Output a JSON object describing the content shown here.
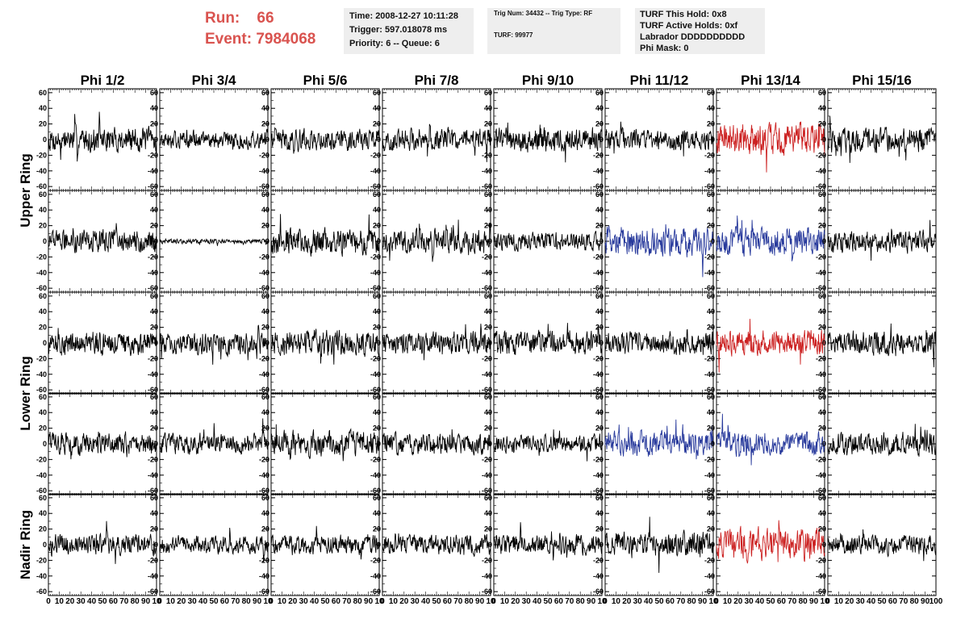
{
  "header": {
    "run_label": "Run:",
    "run_value": "66",
    "event_label": "Event:",
    "event_value": "7984068",
    "info_box_1": [
      "Time: 2008-12-27 10:11:28",
      "Trigger: 597.018078 ms",
      "Priority: 6 -- Queue: 6"
    ],
    "info_box_2": [
      "Trig Num: 34432 -- Trig Type: RF",
      "TURF: 99977"
    ],
    "info_box_3": [
      "TURF This Hold: 0x8",
      "TURF Active Holds: 0xf",
      "Labrador DDDDDDDDDD",
      "Phi Mask: 0"
    ]
  },
  "chart_data": {
    "type": "line",
    "title": "",
    "column_labels": [
      "Phi 1/2",
      "Phi 3/4",
      "Phi 5/6",
      "Phi 7/8",
      "Phi 9/10",
      "Phi 11/12",
      "Phi 13/14",
      "Phi 15/16"
    ],
    "ring_labels": [
      {
        "name": "Upper Ring",
        "rows": [
          0,
          1
        ]
      },
      {
        "name": "Lower Ring",
        "rows": [
          2,
          3
        ]
      },
      {
        "name": "Nadir Ring",
        "rows": [
          4
        ]
      }
    ],
    "xlim": [
      0,
      100
    ],
    "ylim": [
      -65,
      65
    ],
    "y_ticks": [
      -60,
      -40,
      -20,
      0,
      20,
      40,
      60
    ],
    "x_ticks": [
      0,
      10,
      20,
      30,
      40,
      50,
      60,
      70,
      80,
      90,
      100
    ],
    "x_tick_label_strings": [
      "0",
      "10",
      "20",
      "30",
      "40",
      "50",
      "60",
      "70",
      "80",
      "90",
      "10"
    ],
    "x_tick_label_strings_last": [
      "0",
      "10",
      "20",
      "30",
      "40",
      "50",
      "60",
      "70",
      "80",
      "90",
      "100"
    ],
    "samples_per_trace": 256,
    "colors": {
      "normal": "#000000",
      "hit": "#cc2222",
      "active": "#283a9c"
    },
    "panels": [
      {
        "row": 0,
        "col": 0,
        "color": "normal",
        "amplitude": 16
      },
      {
        "row": 0,
        "col": 1,
        "color": "normal",
        "amplitude": 12
      },
      {
        "row": 0,
        "col": 2,
        "color": "normal",
        "amplitude": 14
      },
      {
        "row": 0,
        "col": 3,
        "color": "normal",
        "amplitude": 14
      },
      {
        "row": 0,
        "col": 4,
        "color": "normal",
        "amplitude": 16
      },
      {
        "row": 0,
        "col": 5,
        "color": "normal",
        "amplitude": 13
      },
      {
        "row": 0,
        "col": 6,
        "color": "hit",
        "amplitude": 20
      },
      {
        "row": 0,
        "col": 7,
        "color": "normal",
        "amplitude": 16
      },
      {
        "row": 1,
        "col": 0,
        "color": "normal",
        "amplitude": 14
      },
      {
        "row": 1,
        "col": 1,
        "color": "normal",
        "amplitude": 3
      },
      {
        "row": 1,
        "col": 2,
        "color": "normal",
        "amplitude": 17
      },
      {
        "row": 1,
        "col": 3,
        "color": "normal",
        "amplitude": 15
      },
      {
        "row": 1,
        "col": 4,
        "color": "normal",
        "amplitude": 12
      },
      {
        "row": 1,
        "col": 5,
        "color": "active",
        "amplitude": 18
      },
      {
        "row": 1,
        "col": 6,
        "color": "active",
        "amplitude": 18
      },
      {
        "row": 1,
        "col": 7,
        "color": "normal",
        "amplitude": 14
      },
      {
        "row": 2,
        "col": 0,
        "color": "normal",
        "amplitude": 15
      },
      {
        "row": 2,
        "col": 1,
        "color": "normal",
        "amplitude": 14
      },
      {
        "row": 2,
        "col": 2,
        "color": "normal",
        "amplitude": 16
      },
      {
        "row": 2,
        "col": 3,
        "color": "normal",
        "amplitude": 14
      },
      {
        "row": 2,
        "col": 4,
        "color": "normal",
        "amplitude": 15
      },
      {
        "row": 2,
        "col": 5,
        "color": "normal",
        "amplitude": 14
      },
      {
        "row": 2,
        "col": 6,
        "color": "hit",
        "amplitude": 16
      },
      {
        "row": 2,
        "col": 7,
        "color": "normal",
        "amplitude": 15
      },
      {
        "row": 3,
        "col": 0,
        "color": "normal",
        "amplitude": 14
      },
      {
        "row": 3,
        "col": 1,
        "color": "normal",
        "amplitude": 13
      },
      {
        "row": 3,
        "col": 2,
        "color": "normal",
        "amplitude": 17
      },
      {
        "row": 3,
        "col": 3,
        "color": "normal",
        "amplitude": 14
      },
      {
        "row": 3,
        "col": 4,
        "color": "normal",
        "amplitude": 11
      },
      {
        "row": 3,
        "col": 5,
        "color": "active",
        "amplitude": 15
      },
      {
        "row": 3,
        "col": 6,
        "color": "active",
        "amplitude": 15
      },
      {
        "row": 3,
        "col": 7,
        "color": "normal",
        "amplitude": 14
      },
      {
        "row": 4,
        "col": 0,
        "color": "normal",
        "amplitude": 13
      },
      {
        "row": 4,
        "col": 1,
        "color": "normal",
        "amplitude": 11
      },
      {
        "row": 4,
        "col": 2,
        "color": "normal",
        "amplitude": 12
      },
      {
        "row": 4,
        "col": 3,
        "color": "normal",
        "amplitude": 13
      },
      {
        "row": 4,
        "col": 4,
        "color": "normal",
        "amplitude": 13
      },
      {
        "row": 4,
        "col": 5,
        "color": "normal",
        "amplitude": 16
      },
      {
        "row": 4,
        "col": 6,
        "color": "hit",
        "amplitude": 20
      },
      {
        "row": 4,
        "col": 7,
        "color": "normal",
        "amplitude": 13
      }
    ]
  }
}
